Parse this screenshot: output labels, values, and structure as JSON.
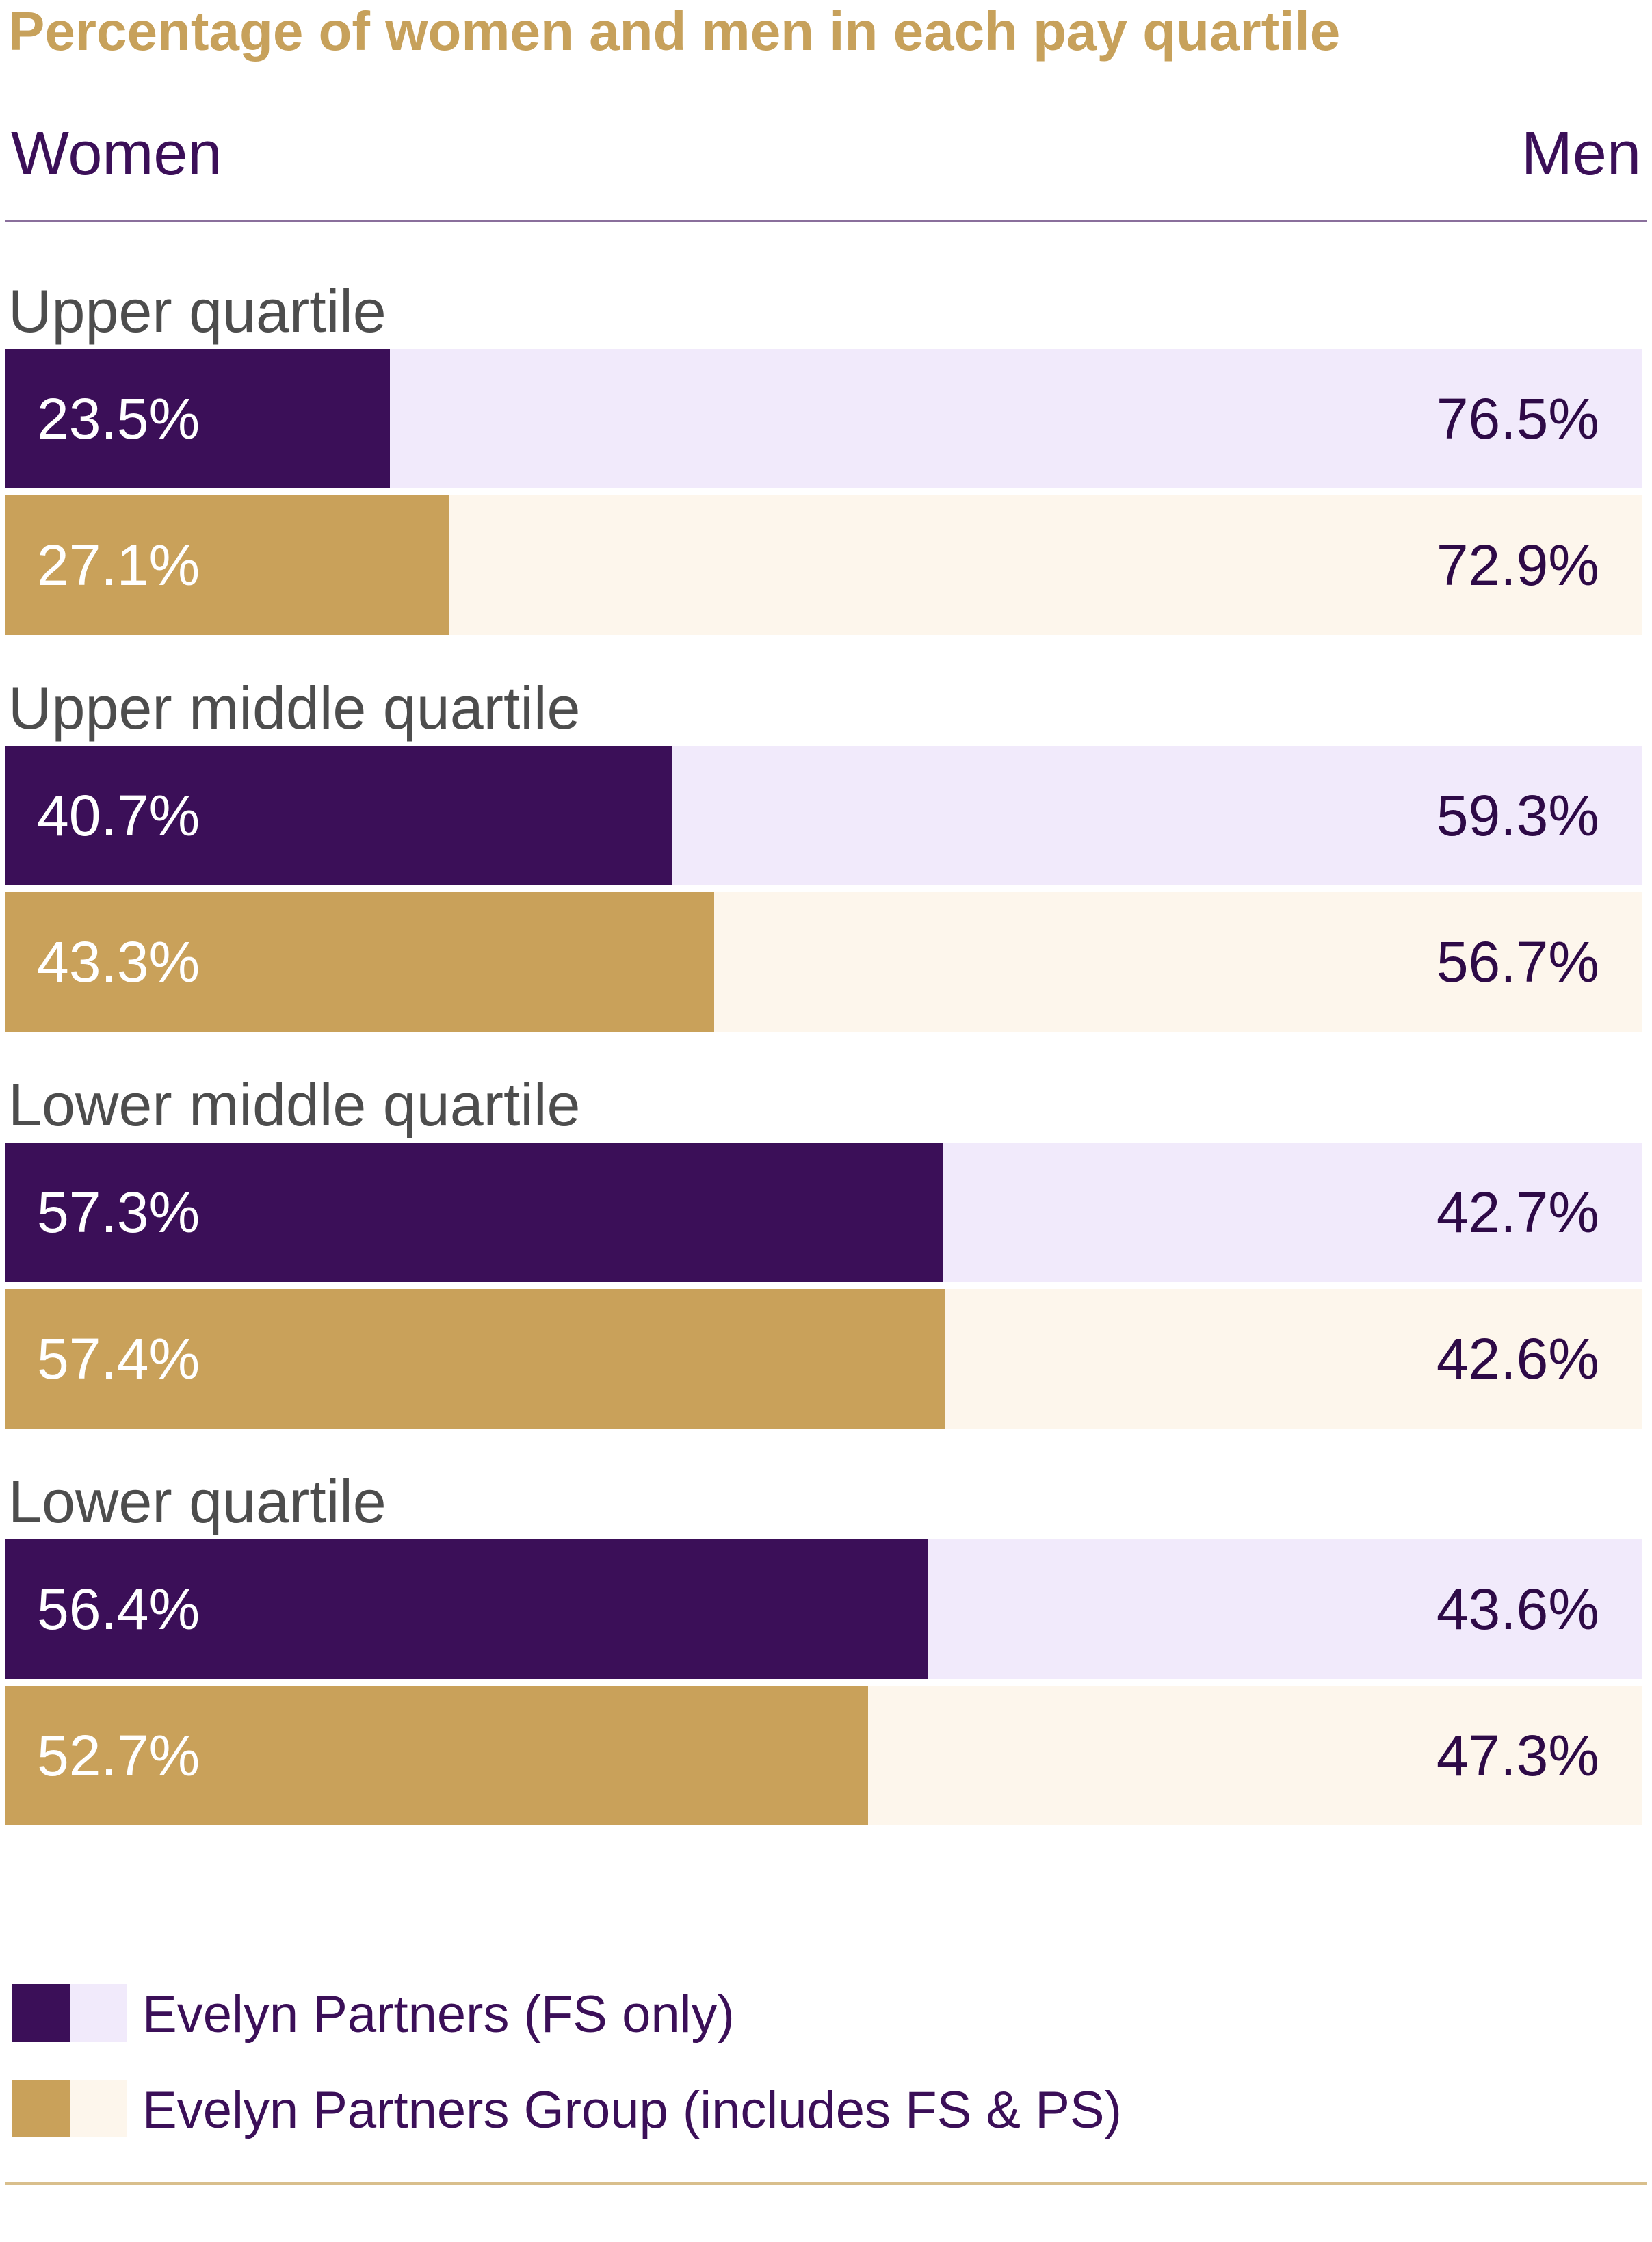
{
  "chart_data": {
    "type": "bar",
    "title": "Percentage of women and men in each pay quartile",
    "left_header": "Women",
    "right_header": "Men",
    "stacked": true,
    "orientation": "horizontal",
    "xlim": [
      0,
      100
    ],
    "categories": [
      "Upper quartile",
      "Upper middle quartile",
      "Lower middle quartile",
      "Lower quartile"
    ],
    "series": [
      {
        "name": "Evelyn Partners (FS only)",
        "women": [
          23.5,
          40.7,
          57.3,
          56.4
        ],
        "men": [
          76.5,
          59.3,
          42.7,
          43.6
        ],
        "women_labels": [
          "23.5%",
          "40.7%",
          "57.3%",
          "56.4%"
        ],
        "men_labels": [
          "76.5%",
          "59.3%",
          "42.7%",
          "43.6%"
        ],
        "color_women": "#3b0f58",
        "color_men": "#f1eafb"
      },
      {
        "name": "Evelyn Partners Group (includes FS & PS)",
        "women": [
          27.1,
          43.3,
          57.4,
          52.7
        ],
        "men": [
          72.9,
          56.7,
          42.6,
          47.3
        ],
        "women_labels": [
          "27.1%",
          "43.3%",
          "57.4%",
          "52.7%"
        ],
        "men_labels": [
          "72.9%",
          "56.7%",
          "42.6%",
          "47.3%"
        ],
        "color_women": "#c9a15a",
        "color_men": "#fdf6ec"
      }
    ],
    "legend_position": "bottom-left",
    "grid": false
  }
}
